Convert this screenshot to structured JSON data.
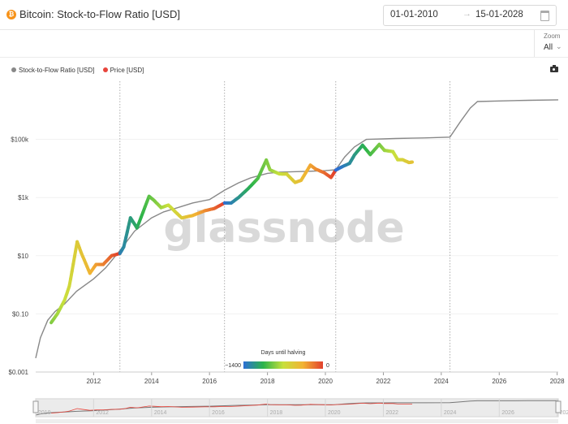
{
  "header": {
    "title": "Bitcoin: Stock-to-Flow Ratio [USD]",
    "date_from": "01-01-2010",
    "date_to": "15-01-2028",
    "arrow": "→",
    "logo_letter": "₿"
  },
  "zoom": {
    "label": "Zoom",
    "value": "All",
    "chevron": "⌄"
  },
  "legend": {
    "items": [
      {
        "label": "Stock-to-Flow Ratio [USD]",
        "color": "#888888"
      },
      {
        "label": "Price [USD]",
        "color": "#e8453c"
      }
    ]
  },
  "watermark": "glassnode",
  "colorbar": {
    "title": "Days until halving",
    "min_label": "~1400",
    "max_label": "0"
  },
  "icons": {
    "logo": "bitcoin-logo-icon",
    "calendar": "calendar-icon",
    "camera": "camera-icon",
    "chevron": "chevron-down-icon"
  },
  "chart_data": {
    "type": "line",
    "title": "Bitcoin: Stock-to-Flow Ratio [USD]",
    "y_scale": "log",
    "ylim": [
      0.001,
      10000000
    ],
    "xlim": [
      "2010-01-01",
      "2028-01-15"
    ],
    "y_ticks": [
      {
        "value": 0.001,
        "label": "$0.001"
      },
      {
        "value": 0.1,
        "label": "$0.10"
      },
      {
        "value": 10,
        "label": "$10"
      },
      {
        "value": 1000,
        "label": "$1k"
      },
      {
        "value": 100000,
        "label": "$100k"
      }
    ],
    "x_ticks": [
      "2012",
      "2014",
      "2016",
      "2018",
      "2020",
      "2022",
      "2024",
      "2026",
      "2028"
    ],
    "navigator_ticks": [
      "2010",
      "2012",
      "2014",
      "2016",
      "2018",
      "2020",
      "2022",
      "2024",
      "2026",
      "2028"
    ],
    "halvings": [
      "2012-11-28",
      "2016-07-09",
      "2020-05-11",
      "2024-04-19"
    ],
    "series": [
      {
        "name": "Stock-to-Flow Ratio [USD]",
        "color": "#888888",
        "x": [
          "2010-01-01",
          "2010-03-01",
          "2010-06-01",
          "2010-09-01",
          "2011-01-01",
          "2011-06-01",
          "2012-01-01",
          "2012-06-01",
          "2012-11-28",
          "2013-06-01",
          "2014-01-01",
          "2014-06-01",
          "2015-01-01",
          "2015-06-01",
          "2016-01-01",
          "2016-07-09",
          "2017-01-01",
          "2017-06-01",
          "2018-01-01",
          "2018-06-01",
          "2019-01-01",
          "2019-06-01",
          "2020-01-01",
          "2020-05-11",
          "2020-09-01",
          "2021-01-01",
          "2021-06-01",
          "2021-09-01",
          "2022-01-01",
          "2022-06-01",
          "2023-01-01",
          "2023-06-01",
          "2024-04-19",
          "2024-09-01",
          "2025-01-01",
          "2025-04-01",
          "2026-01-01",
          "2027-01-01",
          "2028-01-15"
        ],
        "y": [
          0.003,
          0.015,
          0.06,
          0.12,
          0.22,
          0.6,
          1.6,
          3.8,
          15,
          70,
          200,
          320,
          480,
          650,
          850,
          1800,
          3200,
          4700,
          6800,
          7500,
          7800,
          8000,
          8400,
          9000,
          25000,
          55000,
          100000,
          102000,
          104000,
          107000,
          110000,
          112000,
          120000,
          420000,
          1200000,
          2000000,
          2100000,
          2200000,
          2300000
        ]
      },
      {
        "name": "Price [USD]",
        "color": "#e8453c",
        "color_by": "days_until_halving",
        "x": [
          "2010-07-15",
          "2010-10-01",
          "2011-01-01",
          "2011-03-01",
          "2011-06-08",
          "2011-08-01",
          "2011-11-15",
          "2012-02-01",
          "2012-05-01",
          "2012-08-15",
          "2012-11-28",
          "2013-01-15",
          "2013-04-10",
          "2013-07-01",
          "2013-11-30",
          "2014-02-01",
          "2014-05-01",
          "2014-08-01",
          "2015-01-15",
          "2015-06-01",
          "2015-11-01",
          "2016-03-01",
          "2016-07-09",
          "2016-10-01",
          "2017-01-01",
          "2017-05-01",
          "2017-09-01",
          "2017-12-17",
          "2018-02-01",
          "2018-06-01",
          "2018-09-01",
          "2018-12-15",
          "2019-03-01",
          "2019-06-26",
          "2019-09-01",
          "2019-12-15",
          "2020-03-12",
          "2020-05-11",
          "2020-08-01",
          "2020-11-01",
          "2021-01-01",
          "2021-04-14",
          "2021-07-20",
          "2021-11-10",
          "2022-01-15",
          "2022-05-01",
          "2022-07-01",
          "2022-09-01",
          "2022-11-20",
          "2022-12-31"
        ],
        "y": [
          0.05,
          0.1,
          0.3,
          0.9,
          30,
          12,
          2.5,
          5,
          5,
          10,
          12,
          20,
          200,
          90,
          1100,
          800,
          450,
          550,
          200,
          240,
          350,
          420,
          650,
          650,
          1000,
          2000,
          4500,
          19500,
          9000,
          6500,
          6400,
          3300,
          3900,
          13000,
          9500,
          7200,
          4900,
          8800,
          11500,
          15000,
          29000,
          63000,
          30000,
          67000,
          42000,
          38000,
          20000,
          20000,
          16000,
          16600
        ]
      }
    ]
  }
}
